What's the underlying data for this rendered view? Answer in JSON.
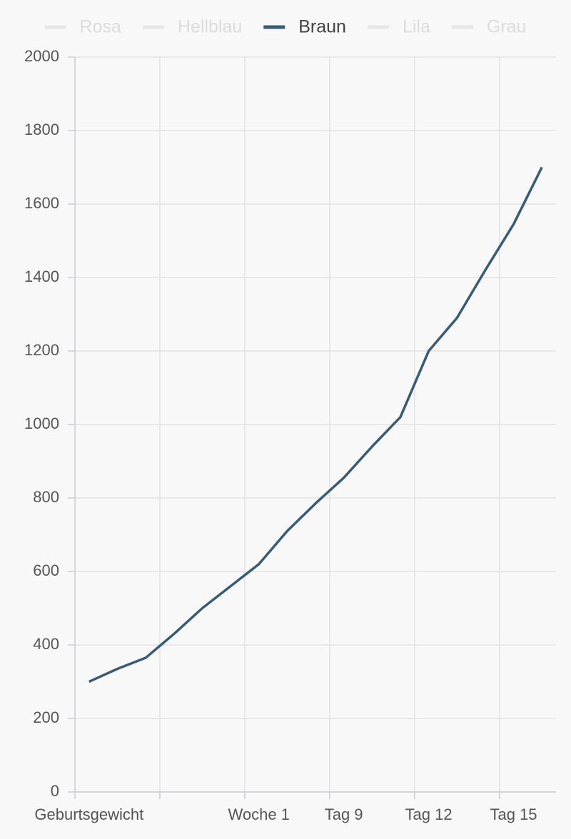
{
  "chart_data": {
    "type": "line",
    "categories": [
      "Geburtsgewicht",
      null,
      null,
      null,
      null,
      null,
      "Woche 1",
      null,
      null,
      "Tag 9",
      null,
      null,
      "Tag 12",
      null,
      null,
      "Tag 15",
      null
    ],
    "series": [
      {
        "name": "Rosa",
        "color": "#e6e6e6",
        "hidden": true
      },
      {
        "name": "Hellblau",
        "color": "#e6e6e6",
        "hidden": true
      },
      {
        "name": "Braun",
        "color": "#3a5b74",
        "values": [
          300,
          335,
          365,
          430,
          500,
          560,
          620,
          710,
          785,
          855,
          940,
          1020,
          1200,
          1290,
          1420,
          1545,
          1700
        ]
      },
      {
        "name": "Lila",
        "color": "#e6e6e6",
        "hidden": true
      },
      {
        "name": "Grau",
        "color": "#e6e6e6",
        "hidden": true
      }
    ],
    "ylim": [
      0,
      2000
    ],
    "yticks": [
      0,
      200,
      400,
      600,
      800,
      1000,
      1200,
      1400,
      1600,
      1800,
      2000
    ],
    "grid": true
  }
}
